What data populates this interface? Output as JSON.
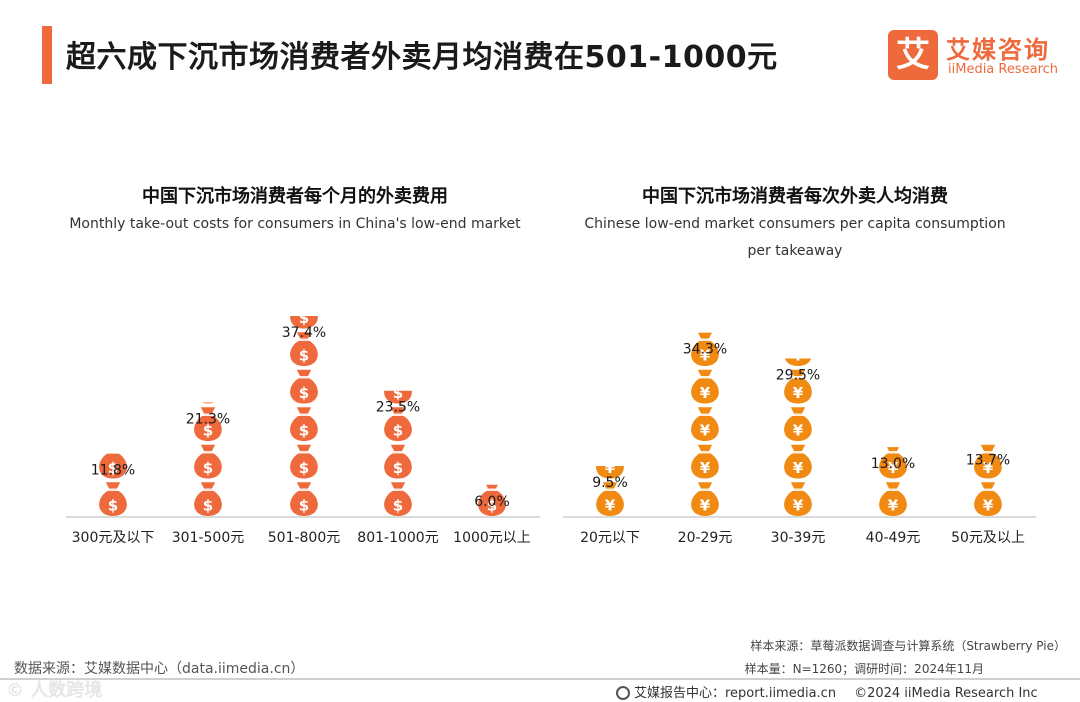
{
  "page_title": "超六成下沉市场消费者外卖月均消费在501-1000元",
  "brand": {
    "mark": "艾",
    "name_cn": "艾媒咨询",
    "name_en": "iiMedia Research",
    "accent": "#ee6a3c"
  },
  "chart_data": [
    {
      "type": "bar",
      "title": "中国下沉市场消费者每个月的外卖费用",
      "subtitle": "Monthly take-out costs for consumers in China's low-end market",
      "icon": "dollar-money-bag",
      "color": "#ee6a3c",
      "categories": [
        "300元及以下",
        "301-500元",
        "501-800元",
        "801-1000元",
        "1000元以上"
      ],
      "values": [
        11.8,
        21.3,
        37.4,
        23.5,
        6.0
      ],
      "labels": [
        "11.8%",
        "21.3%",
        "37.4%",
        "23.5%",
        "6.0%"
      ],
      "ylim": [
        0,
        40
      ]
    },
    {
      "type": "bar",
      "title": "中国下沉市场消费者每次外卖人均消费",
      "subtitle": "Chinese low-end market consumers per capita consumption per takeaway",
      "icon": "yuan-money-bag",
      "color": "#f08a12",
      "categories": [
        "20元以下",
        "20-29元",
        "30-39元",
        "40-49元",
        "50元及以上"
      ],
      "values": [
        9.5,
        34.3,
        29.5,
        13.0,
        13.7
      ],
      "labels": [
        "9.5%",
        "34.3%",
        "29.5%",
        "13.0%",
        "13.7%"
      ],
      "ylim": [
        0,
        40
      ]
    }
  ],
  "footer": {
    "source": "数据来源：艾媒数据中心（data.iimedia.cn）",
    "sample_source": "样本来源：草莓派数据调查与计算系统（Strawberry Pie）",
    "sample_size": "样本量：N=1260；调研时间：2024年11月",
    "report_center": "艾媒报告中心：report.iimedia.cn",
    "copyright": "©2024  iiMedia Research  Inc",
    "watermark": "© 人数跨境"
  }
}
